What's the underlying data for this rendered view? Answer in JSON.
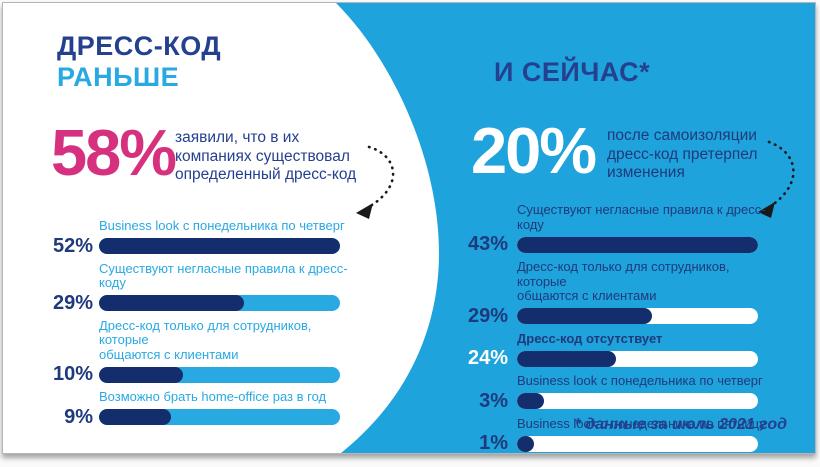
{
  "slide": {
    "left": {
      "title_line1": "ДРЕСС-КОД",
      "title_line2": "РАНЬШЕ",
      "stat_value": "58%",
      "stat_text": "заявили, что в их\nкомпаниях существовал\nопределенный дресс-код",
      "bars": [
        {
          "label": "Business look с понедельника по четверг",
          "value": "52%",
          "fill_pct": 100
        },
        {
          "label": "Существуют негласные правила к дресс-коду",
          "value": "29%",
          "fill_pct": 60
        },
        {
          "label": "Дресс-код только для сотрудников, которые\nобщаются с клиентами",
          "value": "10%",
          "fill_pct": 35
        },
        {
          "label": "Возможно брать home-office раз в год",
          "value": "9%",
          "fill_pct": 30
        }
      ]
    },
    "right": {
      "title": "И СЕЙЧАС*",
      "stat_value": "20%",
      "stat_text": "после самоизоляции\nдресс-код претерпел\nизменения",
      "bars": [
        {
          "label": "Существуют негласные правила к дресс-коду",
          "value": "43%",
          "fill_pct": 100
        },
        {
          "label": "Дресс-код только для сотрудников, которые\nобщаются с клиентами",
          "value": "29%",
          "fill_pct": 56
        },
        {
          "label": "Дресс-код отсутствует",
          "value": "24%",
          "fill_pct": 41
        },
        {
          "label": "Business look с понедельника по четверг",
          "value": "3%",
          "fill_pct": 11
        },
        {
          "label": "Business look с понедельника по пятницу",
          "value": "1%",
          "fill_pct": 7
        }
      ],
      "footnote": "* данные за июль 2021 год"
    }
  },
  "icons": {
    "left_arrow": "dotted-curved-arrow",
    "right_arrow": "dotted-curved-arrow"
  },
  "colors": {
    "sky_blue": "#29A9E1",
    "background_blue": "#1FA3DC",
    "navy_title": "#24408F",
    "navy_bar_fill": "#142E6D",
    "navy_label": "#1E3A7C",
    "magenta": "#D5317E",
    "white": "#FFFFFF"
  },
  "chart_data": [
    {
      "type": "bar",
      "title": "ДРЕСС-КОД РАНЬШЕ",
      "subtitle": "58% заявили, что в их компаниях существовал определенный дресс-код",
      "categories": [
        "Business look с понедельника по четверг",
        "Существуют негласные правила к дресс-коду",
        "Дресс-код только для сотрудников, которые общаются с клиентами",
        "Возможно брать home-office раз в год"
      ],
      "values": [
        52,
        29,
        10,
        9
      ],
      "unit": "%",
      "orientation": "horizontal",
      "xlabel": "",
      "ylabel": "",
      "legend": false,
      "grid": false
    },
    {
      "type": "bar",
      "title": "И СЕЙЧАС*",
      "subtitle": "20% после самоизоляции дресс-код претерпел изменения",
      "categories": [
        "Существуют негласные правила к дресс-коду",
        "Дресс-код только для сотрудников, которые общаются с клиентами",
        "Дресс-код отсутствует",
        "Business look с понедельника по четверг",
        "Business look с понедельника по пятницу"
      ],
      "values": [
        43,
        29,
        24,
        3,
        1
      ],
      "unit": "%",
      "orientation": "horizontal",
      "xlabel": "",
      "ylabel": "",
      "legend": false,
      "grid": false,
      "annotation": "* данные за июль 2021 год"
    }
  ]
}
